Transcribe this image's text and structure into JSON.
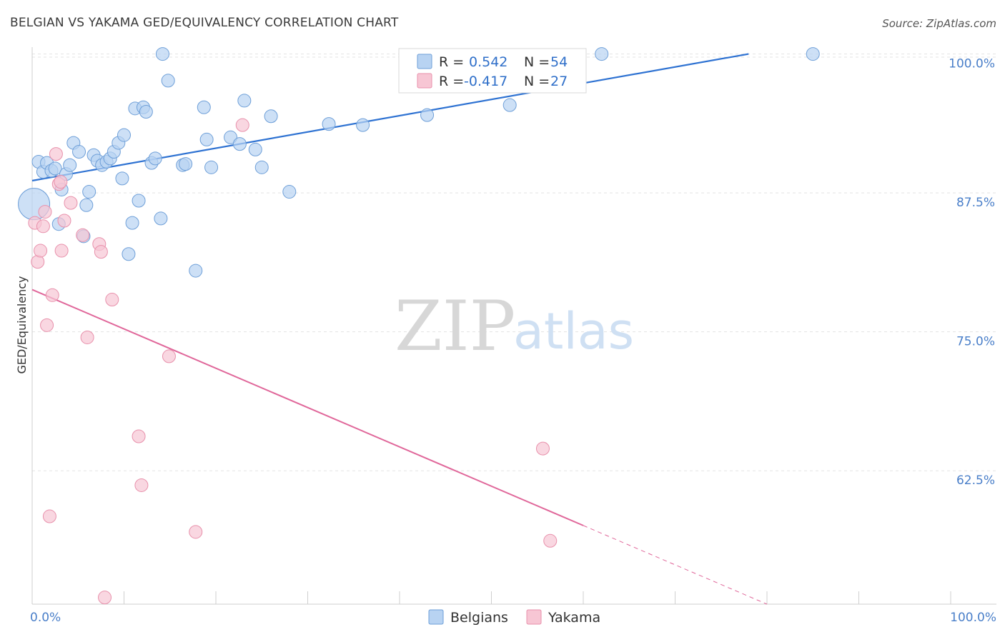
{
  "title": "BELGIAN VS YAKAMA GED/EQUIVALENCY CORRELATION CHART",
  "source": "Source: ZipAtlas.com",
  "watermark": {
    "zip": "ZIP",
    "atlas": "atlas"
  },
  "colors": {
    "blue_fill": "#b8d3f2",
    "blue_stroke": "#6e9fd8",
    "blue_line": "#2e72d2",
    "pink_fill": "#f7c6d4",
    "pink_stroke": "#e890ab",
    "pink_line": "#e0679a",
    "grid": "#e3e3e3",
    "axis_label": "#4a7fc9"
  },
  "legend": {
    "rows": [
      {
        "r_label": "R =",
        "r_value": "0.542",
        "n_label": "N =",
        "n_value": "54"
      },
      {
        "r_label": "R =",
        "r_value": "-0.417",
        "n_label": "N =",
        "n_value": "27"
      }
    ]
  },
  "bottom_legend": {
    "items": [
      "Belgians",
      "Yakama"
    ]
  },
  "chart_data": {
    "type": "scatter",
    "ylabel": "GED/Equivalency",
    "xlim": [
      0,
      100
    ],
    "ylim": [
      50.5,
      101
    ],
    "x_tick_labels": [
      "0.0%",
      "100.0%"
    ],
    "y_ticks": [
      62.5,
      75.0,
      87.5,
      100.0
    ],
    "y_tick_labels": [
      "62.5%",
      "75.0%",
      "87.5%",
      "100.0%"
    ],
    "grid": true,
    "series": [
      {
        "name": "Belgians",
        "points": [
          [
            0.2,
            86.5
          ],
          [
            0.7,
            90.3
          ],
          [
            1.2,
            89.4
          ],
          [
            1.6,
            90.2
          ],
          [
            2.1,
            89.5
          ],
          [
            2.5,
            89.7
          ],
          [
            2.9,
            84.7
          ],
          [
            3.2,
            87.8
          ],
          [
            3.7,
            89.2
          ],
          [
            4.1,
            90.0
          ],
          [
            4.5,
            92.0
          ],
          [
            5.1,
            91.2
          ],
          [
            5.6,
            83.6
          ],
          [
            5.9,
            86.4
          ],
          [
            6.2,
            87.6
          ],
          [
            6.7,
            90.9
          ],
          [
            7.1,
            90.4
          ],
          [
            7.6,
            90.0
          ],
          [
            8.1,
            90.3
          ],
          [
            8.5,
            90.6
          ],
          [
            8.9,
            91.2
          ],
          [
            9.4,
            92.0
          ],
          [
            9.8,
            88.8
          ],
          [
            10.0,
            92.7
          ],
          [
            10.5,
            82.0
          ],
          [
            10.9,
            84.8
          ],
          [
            11.2,
            95.1
          ],
          [
            11.6,
            86.8
          ],
          [
            12.1,
            95.2
          ],
          [
            12.4,
            94.8
          ],
          [
            13.0,
            90.2
          ],
          [
            13.4,
            90.6
          ],
          [
            14.0,
            85.2
          ],
          [
            14.2,
            100.0
          ],
          [
            14.8,
            97.6
          ],
          [
            16.4,
            90.0
          ],
          [
            16.7,
            90.1
          ],
          [
            17.8,
            80.5
          ],
          [
            18.7,
            95.2
          ],
          [
            19.0,
            92.3
          ],
          [
            19.5,
            89.8
          ],
          [
            21.6,
            92.5
          ],
          [
            22.6,
            91.9
          ],
          [
            23.1,
            95.8
          ],
          [
            24.3,
            91.4
          ],
          [
            25.0,
            89.8
          ],
          [
            26.0,
            94.4
          ],
          [
            28.0,
            87.6
          ],
          [
            32.3,
            93.7
          ],
          [
            36.0,
            93.6
          ],
          [
            43.0,
            94.5
          ],
          [
            52.0,
            95.4
          ],
          [
            62.0,
            100.0
          ],
          [
            85.0,
            100.0
          ]
        ],
        "trend": {
          "x": [
            0,
            78.0
          ],
          "y": [
            88.6,
            100.0
          ]
        }
      },
      {
        "name": "Yakama",
        "points": [
          [
            0.3,
            84.8
          ],
          [
            0.6,
            81.3
          ],
          [
            0.9,
            82.3
          ],
          [
            1.2,
            84.5
          ],
          [
            1.4,
            85.8
          ],
          [
            1.6,
            75.6
          ],
          [
            1.9,
            58.4
          ],
          [
            2.2,
            78.3
          ],
          [
            2.6,
            91.0
          ],
          [
            2.9,
            88.3
          ],
          [
            3.1,
            88.5
          ],
          [
            3.2,
            82.3
          ],
          [
            3.5,
            85.0
          ],
          [
            4.2,
            86.6
          ],
          [
            5.5,
            83.7
          ],
          [
            6.0,
            74.5
          ],
          [
            7.3,
            82.9
          ],
          [
            7.5,
            82.2
          ],
          [
            7.9,
            51.1
          ],
          [
            8.7,
            77.9
          ],
          [
            11.6,
            65.6
          ],
          [
            11.9,
            61.2
          ],
          [
            14.9,
            72.8
          ],
          [
            17.8,
            57.0
          ],
          [
            22.9,
            93.6
          ],
          [
            55.6,
            64.5
          ],
          [
            56.4,
            56.2
          ]
        ],
        "trend": {
          "x": [
            0,
            80.0
          ],
          "y": [
            78.8,
            50.5
          ]
        },
        "trend_solid_until_x": 60.0
      }
    ]
  }
}
